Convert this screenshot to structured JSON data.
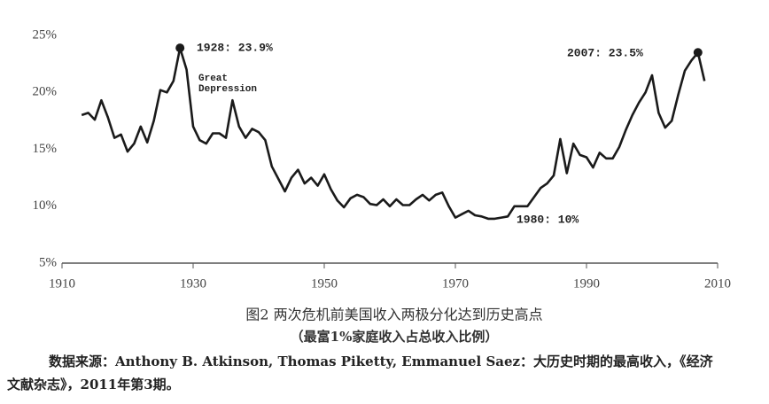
{
  "chart_data": {
    "type": "line",
    "x": [
      1913,
      1914,
      1915,
      1916,
      1917,
      1918,
      1919,
      1920,
      1921,
      1922,
      1923,
      1924,
      1925,
      1926,
      1927,
      1928,
      1929,
      1930,
      1931,
      1932,
      1933,
      1934,
      1935,
      1936,
      1937,
      1938,
      1939,
      1940,
      1941,
      1942,
      1943,
      1944,
      1945,
      1946,
      1947,
      1948,
      1949,
      1950,
      1951,
      1952,
      1953,
      1954,
      1955,
      1956,
      1957,
      1958,
      1959,
      1960,
      1961,
      1962,
      1963,
      1964,
      1965,
      1966,
      1967,
      1968,
      1969,
      1970,
      1971,
      1972,
      1973,
      1974,
      1975,
      1976,
      1977,
      1978,
      1979,
      1980,
      1981,
      1982,
      1983,
      1984,
      1985,
      1986,
      1987,
      1988,
      1989,
      1990,
      1991,
      1992,
      1993,
      1994,
      1995,
      1996,
      1997,
      1998,
      1999,
      2000,
      2001,
      2002,
      2003,
      2004,
      2005,
      2006,
      2007,
      2008
    ],
    "values": [
      18.0,
      18.2,
      17.6,
      19.3,
      17.8,
      16.0,
      16.3,
      14.8,
      15.5,
      17.0,
      15.6,
      17.5,
      20.2,
      20.0,
      21.0,
      23.9,
      22.0,
      17.0,
      15.8,
      15.5,
      16.4,
      16.4,
      16.0,
      19.3,
      17.0,
      16.0,
      16.8,
      16.5,
      15.8,
      13.5,
      12.4,
      11.3,
      12.5,
      13.2,
      12.0,
      12.5,
      11.8,
      12.8,
      11.5,
      10.5,
      9.9,
      10.7,
      11.0,
      10.8,
      10.2,
      10.1,
      10.6,
      10.0,
      10.6,
      10.1,
      10.1,
      10.6,
      11.0,
      10.5,
      11.0,
      11.2,
      10.0,
      9.0,
      9.3,
      9.6,
      9.2,
      9.1,
      8.9,
      8.9,
      9.0,
      9.1,
      10.0,
      10.0,
      10.0,
      10.8,
      11.6,
      12.0,
      12.7,
      15.9,
      12.9,
      15.5,
      14.5,
      14.3,
      13.4,
      14.7,
      14.2,
      14.2,
      15.2,
      16.7,
      18.0,
      19.1,
      20.0,
      21.5,
      18.2,
      16.9,
      17.5,
      19.8,
      21.9,
      22.8,
      23.5,
      21.0
    ],
    "color": "#1a1a1a",
    "xlim": [
      1910,
      2010
    ],
    "xticks": [
      1910,
      1930,
      1950,
      1970,
      1990,
      2010
    ],
    "ylim": [
      5,
      25
    ],
    "yticks": [
      {
        "value": 5,
        "label": "5%"
      },
      {
        "value": 10,
        "label": "10%"
      },
      {
        "value": 15,
        "label": "15%"
      },
      {
        "value": 20,
        "label": "20%"
      },
      {
        "value": 25,
        "label": "25%"
      }
    ],
    "grid": false,
    "annotations": [
      "1928: 23.9%",
      "Great",
      "Depression",
      "2007: 23.5%",
      "1980: 10%"
    ],
    "caption": "图2  两次危机前美国收入两极分化达到历史高点",
    "subcaption": "（最富1%家庭收入占总收入比例）",
    "source": [
      "数据来源：Anthony B. Atkinson, Thomas Piketty, Emmanuel Saez：大历史时期的最高收入，《经济",
      "文献杂志》，2011年第3期。"
    ]
  }
}
